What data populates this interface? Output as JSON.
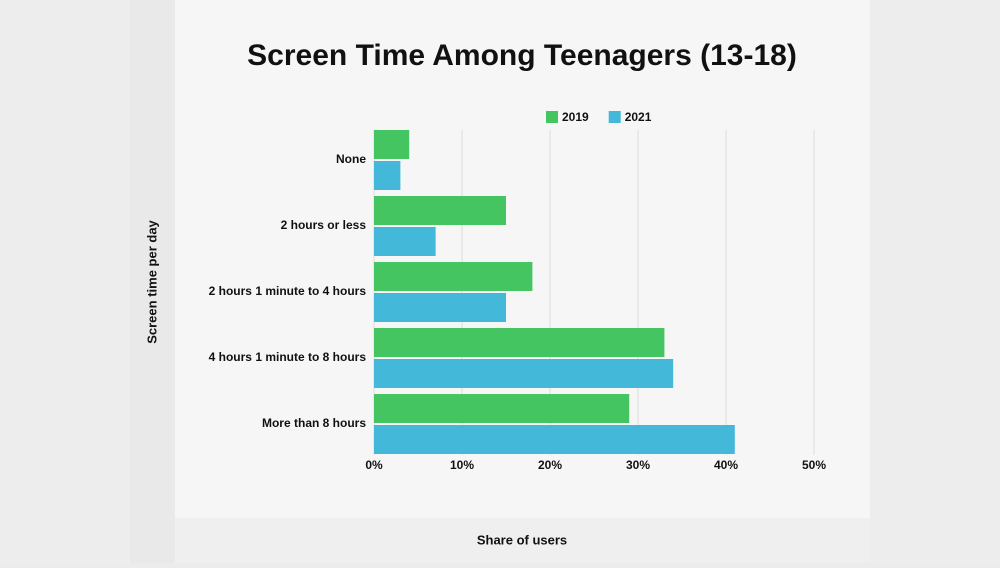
{
  "chart_data": {
    "type": "bar",
    "orientation": "horizontal",
    "title": "Screen Time Among Teenagers (13-18)",
    "x_label": "Share of users",
    "y_label": "Screen time per day",
    "categories": [
      "None",
      "2 hours or less",
      "2 hours 1 minute to 4 hours",
      "4 hours 1 minute to 8 hours",
      "More than 8 hours"
    ],
    "series": [
      {
        "name": "2019",
        "color": "#45c462",
        "values": [
          4,
          15,
          18,
          33,
          29
        ]
      },
      {
        "name": "2021",
        "color": "#43b8d8",
        "values": [
          3,
          7,
          15,
          34,
          41
        ]
      }
    ],
    "xlim": [
      0,
      50
    ],
    "xticks": [
      {
        "value": 0,
        "label": "0%"
      },
      {
        "value": 10,
        "label": "10%"
      },
      {
        "value": 20,
        "label": "20%"
      },
      {
        "value": 30,
        "label": "30%"
      },
      {
        "value": 40,
        "label": "40%"
      },
      {
        "value": 50,
        "label": "50%"
      }
    ],
    "grid": true,
    "legend": "top"
  }
}
